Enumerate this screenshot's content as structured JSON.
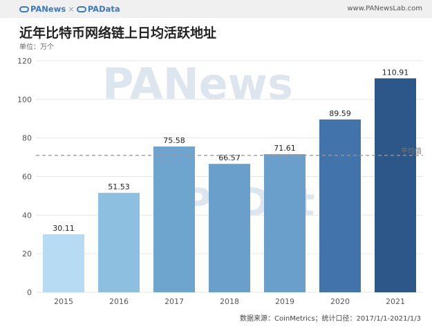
{
  "header": {
    "brand_left": "PANews",
    "brand_sep": "×",
    "brand_right": "PAData",
    "site": "www.PANewsLab.com"
  },
  "watermark": {
    "top": "PANews",
    "middle": "PADat"
  },
  "chart_data": {
    "type": "bar",
    "title": "近年比特币网络链上日均活跃地址",
    "subtitle": "单位：万个",
    "xlabel": "",
    "ylabel": "",
    "categories": [
      "2015",
      "2016",
      "2017",
      "2018",
      "2019",
      "2020",
      "2021"
    ],
    "values": [
      30.11,
      51.53,
      75.58,
      66.57,
      71.61,
      89.59,
      110.91
    ],
    "value_labels": [
      "30.11",
      "51.53",
      "75.58",
      "66.57",
      "71.61",
      "89.59",
      "110.91"
    ],
    "bar_colors": [
      "#b7dbf2",
      "#8dbfe0",
      "#6ea5cf",
      "#6a9fcc",
      "#6a9fcc",
      "#4273ab",
      "#2c5788"
    ],
    "ylim": [
      0,
      120
    ],
    "yticks": [
      0,
      20,
      40,
      60,
      80,
      100,
      120
    ],
    "average_line": {
      "value": 71,
      "label": "平均值",
      "color": "#999999"
    },
    "grid": true,
    "legend": "none",
    "source": "数据来源：CoinMetrics；统计口径：2017/1/1-2021/1/3"
  }
}
